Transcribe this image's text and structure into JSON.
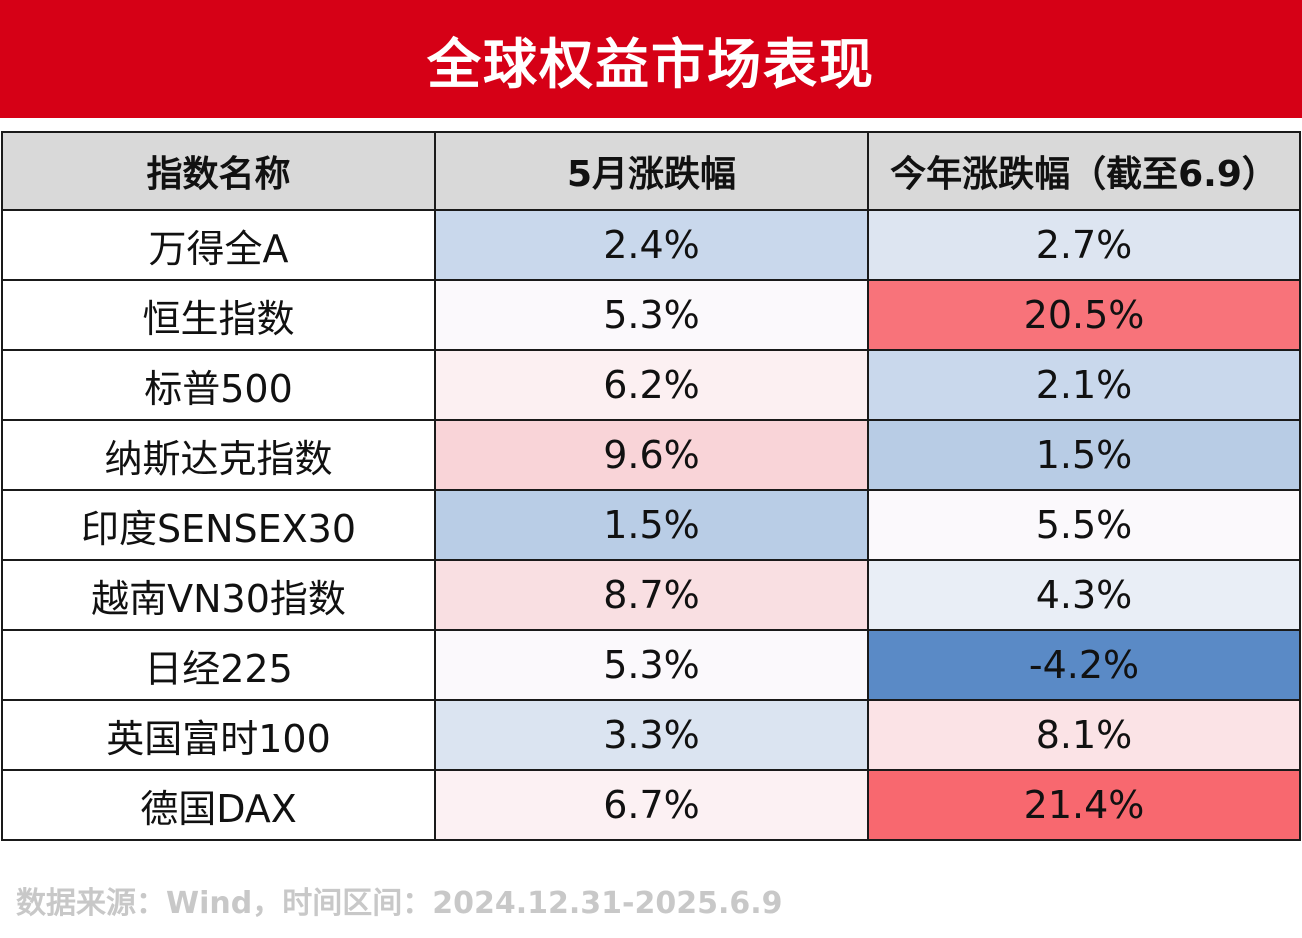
{
  "header": {
    "title": "全球权益市场表现"
  },
  "chart_data": {
    "type": "table",
    "columns": [
      "指数名称",
      "5月涨跌幅",
      "今年涨跌幅（截至6.9）"
    ],
    "rows": [
      {
        "name": "万得全A",
        "may": "2.4%",
        "ytd": "2.7%"
      },
      {
        "name": "恒生指数",
        "may": "5.3%",
        "ytd": "20.5%"
      },
      {
        "name": "标普500",
        "may": "6.2%",
        "ytd": "2.1%"
      },
      {
        "name": "纳斯达克指数",
        "may": "9.6%",
        "ytd": "1.5%"
      },
      {
        "name": "印度SENSEX30",
        "may": "1.5%",
        "ytd": "5.5%"
      },
      {
        "name": "越南VN30指数",
        "may": "8.7%",
        "ytd": "4.3%"
      },
      {
        "name": "日经225",
        "may": "5.3%",
        "ytd": "-4.2%"
      },
      {
        "name": "英国富时100",
        "may": "3.3%",
        "ytd": "8.1%"
      },
      {
        "name": "德国DAX",
        "may": "6.7%",
        "ytd": "21.4%"
      }
    ],
    "cell_colors": {
      "may": [
        "#c9d8ec",
        "#fbf9fc",
        "#fcf0f2",
        "#f9d4d8",
        "#b9cde6",
        "#f9dfe2",
        "#fbf9fc",
        "#dbe4f1",
        "#fcf1f3"
      ],
      "ytd": [
        "#dde5f1",
        "#f8737a",
        "#c9d8ec",
        "#b8cce5",
        "#fbf9fc",
        "#e9eef6",
        "#5a8ac6",
        "#fbe3e6",
        "#f8686f"
      ]
    },
    "colors": {
      "title_bar": "#d60016",
      "header_row": "#d9d9d9",
      "positive_scale": "#f8696b",
      "negative_scale": "#5a8ac6"
    }
  },
  "footer": {
    "source": "数据来源：Wind，时间区间：2024.12.31-2025.6.9"
  }
}
